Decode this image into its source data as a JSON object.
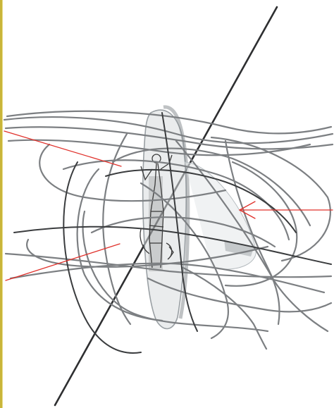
{
  "image": {
    "subject": "wire-and-acrylic-sculpture",
    "colors": {
      "background": "#ffffff",
      "frame_rule": "#c9b53a",
      "frame_rule_inner": "#e7dc8a",
      "wire": "#7c7f82",
      "wire_dark": "#3a3c3e",
      "rod": "#2e2f31",
      "disc_fill": "#d8dcdf",
      "disc_edge": "#9aa0a4",
      "etched_figure": "#3b3b3b",
      "annotation_arrow": "#e0312b"
    }
  }
}
